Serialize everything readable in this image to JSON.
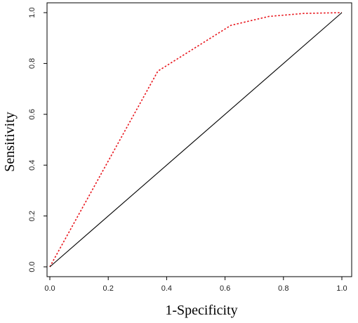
{
  "chart_data": {
    "type": "line",
    "title": "",
    "xlabel": "1-Specificity",
    "ylabel": "Sensitivity",
    "xlim": [
      0.0,
      1.0
    ],
    "ylim": [
      0.0,
      1.0
    ],
    "grid": false,
    "x_ticks": [
      "0.0",
      "0.2",
      "0.4",
      "0.6",
      "0.8",
      "1.0"
    ],
    "y_ticks": [
      "0.0",
      "0.2",
      "0.4",
      "0.6",
      "0.8",
      "1.0"
    ],
    "series": [
      {
        "style": "dotted",
        "color": "#e8141b",
        "x": [
          0.0,
          0.37,
          0.62,
          0.75,
          0.87,
          1.0
        ],
        "y": [
          0.0,
          0.77,
          0.95,
          0.985,
          0.997,
          1.0
        ]
      },
      {
        "style": "solid",
        "color": "#000000",
        "x": [
          0.0,
          1.0
        ],
        "y": [
          0.0,
          1.0
        ]
      }
    ]
  }
}
